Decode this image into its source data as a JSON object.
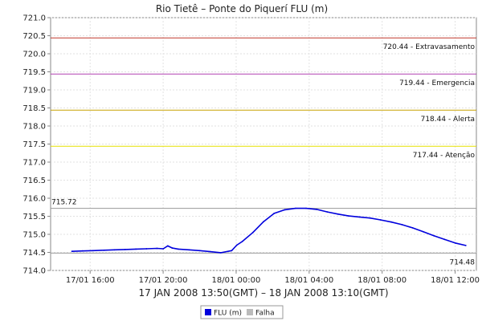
{
  "chart_data": {
    "type": "line",
    "title": "Rio Tietê – Ponte do Piquerí FLU (m)",
    "xlabel": "17 JAN 2008 13:50(GMT) – 18 JAN 2008 13:10(GMT)",
    "ylabel": "",
    "ylim": [
      714.0,
      721.0
    ],
    "y_ticks": [
      "714.0",
      "714.5",
      "715.0",
      "715.5",
      "716.0",
      "716.5",
      "717.0",
      "717.5",
      "718.0",
      "718.5",
      "719.0",
      "719.5",
      "720.0",
      "720.5",
      "721.0"
    ],
    "x_range_hours": [
      0,
      23.33
    ],
    "x_ticks": [
      {
        "label": "17/01 16:00",
        "hour": 2.167
      },
      {
        "label": "17/01 20:00",
        "hour": 6.167
      },
      {
        "label": "18/01 00:00",
        "hour": 10.167
      },
      {
        "label": "18/01 04:00",
        "hour": 14.167
      },
      {
        "label": "18/01 08:00",
        "hour": 18.167
      },
      {
        "label": "18/01 12:00",
        "hour": 22.167
      }
    ],
    "grid": true,
    "reference_lines": [
      {
        "value": 720.44,
        "label": "720.44 - Extravasamento",
        "color": "#c0392b"
      },
      {
        "value": 719.44,
        "label": "719.44 - Emergencia",
        "color": "#b040b0"
      },
      {
        "value": 718.44,
        "label": "718.44 - Alerta",
        "color": "#c8a200"
      },
      {
        "value": 717.44,
        "label": "717.44 - Atenção",
        "color": "#e6e000"
      }
    ],
    "max_line": {
      "value": 715.72,
      "label": "715.72",
      "color": "#999999"
    },
    "min_line": {
      "value": 714.48,
      "label": "714.48",
      "color": "#999999"
    },
    "series": [
      {
        "name": "FLU (m)",
        "color": "#0000dd",
        "x": [
          1.17,
          1.75,
          2.33,
          2.92,
          3.5,
          4.08,
          4.67,
          5.25,
          5.83,
          6.17,
          6.42,
          6.67,
          7.0,
          7.58,
          8.17,
          8.75,
          9.33,
          9.92,
          10.2,
          10.5,
          11.08,
          11.67,
          12.25,
          12.83,
          13.42,
          14.0,
          14.58,
          15.17,
          15.75,
          16.33,
          16.92,
          17.5,
          18.08,
          18.67,
          19.25,
          19.83,
          20.42,
          21.0,
          21.58,
          22.17,
          22.75
        ],
        "y": [
          714.53,
          714.54,
          714.55,
          714.56,
          714.57,
          714.58,
          714.59,
          714.6,
          714.61,
          714.6,
          714.68,
          714.62,
          714.59,
          714.57,
          714.55,
          714.52,
          714.49,
          714.55,
          714.7,
          714.8,
          715.05,
          715.35,
          715.58,
          715.68,
          715.72,
          715.72,
          715.69,
          715.62,
          715.56,
          715.51,
          715.48,
          715.45,
          715.4,
          715.34,
          715.27,
          715.18,
          715.07,
          714.96,
          714.86,
          714.76,
          714.69
        ]
      }
    ],
    "legend": {
      "position": "bottom-center",
      "entries": [
        {
          "label": "FLU (m)",
          "color": "#0000dd"
        },
        {
          "label": "Falha",
          "color": "#bbbbbb"
        }
      ]
    }
  }
}
